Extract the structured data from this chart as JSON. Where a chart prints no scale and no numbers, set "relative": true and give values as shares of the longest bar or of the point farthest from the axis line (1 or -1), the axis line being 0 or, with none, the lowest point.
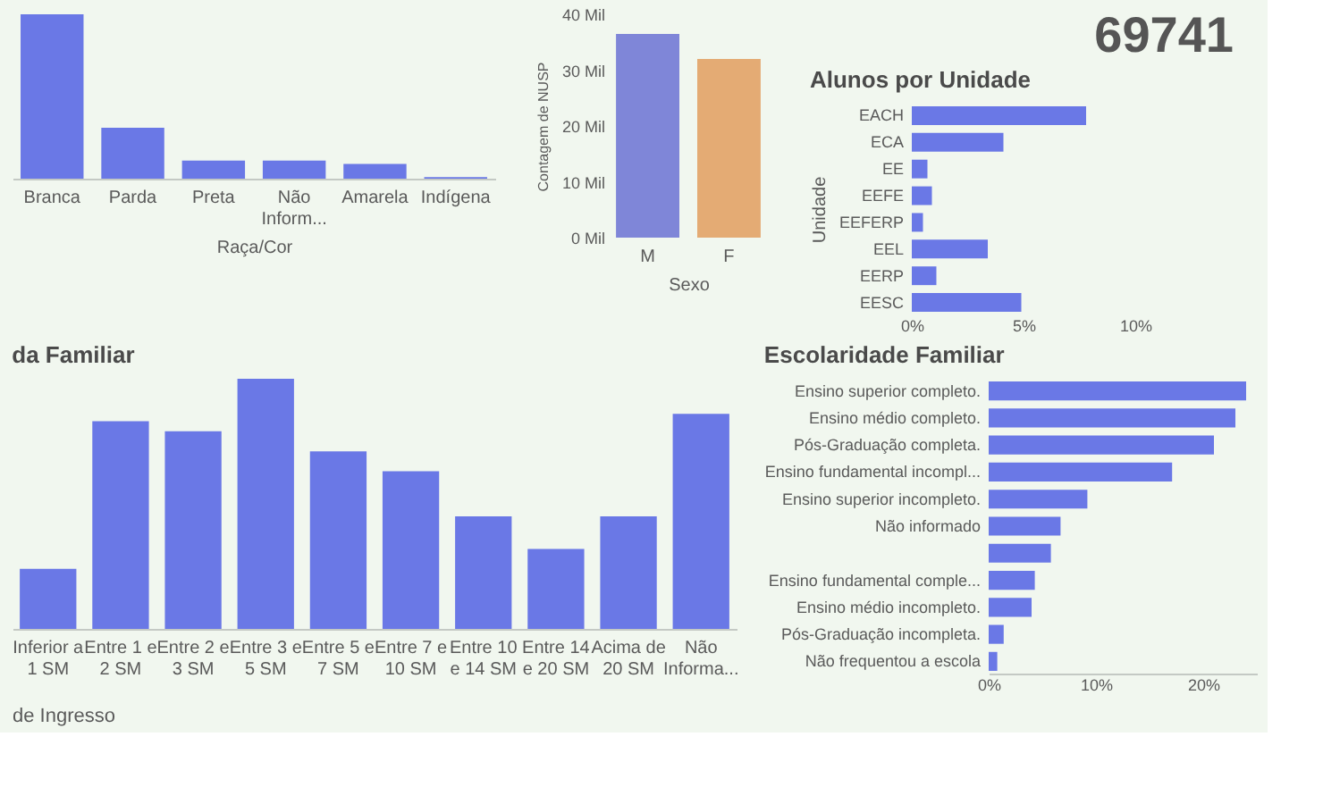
{
  "chart_data": [
    {
      "type": "bar",
      "xlabel": "Raça/Cor",
      "categories": [
        "Branca",
        "Parda",
        "Preta",
        "Não Inform...",
        "Amarela",
        "Indígena"
      ],
      "values": [
        1,
        0.31,
        0.11,
        0.11,
        0.09,
        0.01
      ],
      "color": "#6a78e6",
      "relative": true
    },
    {
      "type": "bar",
      "xlabel": "Sexo",
      "ylabel": "Contagem de NUSP",
      "categories": [
        "M",
        "F"
      ],
      "values": [
        36.5,
        32
      ],
      "colors": [
        "#7f86d8",
        "#e4ab74"
      ],
      "ylim": [
        0,
        40
      ],
      "yticks": [
        {
          "value": 0,
          "label": "0 Mil"
        },
        {
          "value": 10,
          "label": "10 Mil"
        },
        {
          "value": 20,
          "label": "20 Mil"
        },
        {
          "value": 30,
          "label": "30 Mil"
        },
        {
          "value": 40,
          "label": "40 Mil"
        }
      ]
    },
    {
      "type": "other",
      "annotations": [
        "69741"
      ]
    },
    {
      "type": "bar",
      "orientation": "horizontal",
      "title": "Alunos por Unidade",
      "ylabel": "Unidade",
      "categories": [
        "EACH",
        "ECA",
        "EE",
        "EEFE",
        "EEFERP",
        "EEL",
        "EERP",
        "EESC"
      ],
      "values": [
        7.8,
        4.1,
        0.7,
        0.9,
        0.5,
        3.4,
        1.1,
        4.9
      ],
      "color": "#6a78e6",
      "xlim": [
        0,
        10
      ],
      "xticks": [
        {
          "value": 0,
          "label": "0%"
        },
        {
          "value": 5,
          "label": "5%"
        },
        {
          "value": 10,
          "label": "10%"
        }
      ]
    },
    {
      "type": "bar",
      "title": "da Familiar",
      "categories": [
        "Inferior a 1 SM",
        "Entre 1 e 2 SM",
        "Entre 2 e 3 SM",
        "Entre 3 e 5 SM",
        "Entre 5 e 7 SM",
        "Entre 7 e 10 SM",
        "Entre 10 e 14 SM",
        "Entre 14 e 20 SM",
        "Acima de 20 SM",
        "Não Informa..."
      ],
      "values": [
        0.24,
        0.83,
        0.79,
        1,
        0.71,
        0.63,
        0.45,
        0.32,
        0.45,
        0.86
      ],
      "color": "#6a78e6",
      "relative": true
    },
    {
      "type": "bar",
      "orientation": "horizontal",
      "title": "Escolaridade Familiar",
      "categories": [
        "Ensino superior completo.",
        "Ensino médio completo.",
        "Pós-Graduação completa.",
        "Ensino fundamental incompl...",
        "Ensino superior incompleto.",
        "Não informado",
        null,
        "Ensino fundamental comple...",
        "Ensino médio incompleto.",
        "Pós-Graduação incompleta.",
        "Não frequentou a escola"
      ],
      "values": [
        24,
        23,
        21,
        17.1,
        9.2,
        6.7,
        5.8,
        4.3,
        4.0,
        1.4,
        0.8
      ],
      "color": "#6a78e6",
      "xlim": [
        0,
        25
      ],
      "xticks": [
        {
          "value": 0,
          "label": "0%"
        },
        {
          "value": 10,
          "label": "10%"
        },
        {
          "value": 20,
          "label": "20%"
        }
      ]
    },
    {
      "type": "other",
      "title": "de Ingresso"
    }
  ]
}
